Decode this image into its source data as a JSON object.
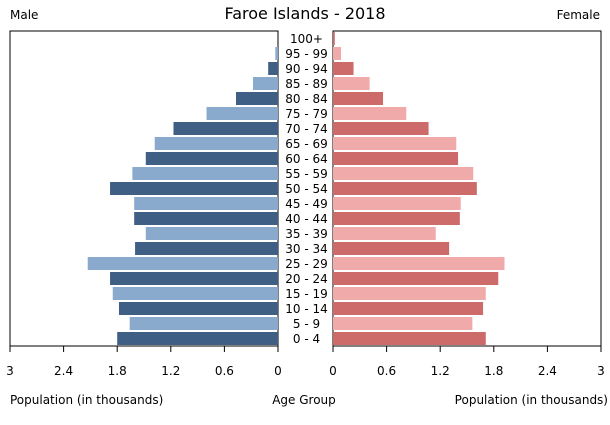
{
  "chart_data": {
    "type": "bar",
    "title": "Faroe Islands - 2018",
    "left_label": "Male",
    "right_label": "Female",
    "xlabel_left": "Population (in thousands)",
    "xlabel_center": "Age Group",
    "xlabel_right": "Population (in thousands)",
    "xlim": [
      0,
      3
    ],
    "ticks": [
      "0",
      "0.6",
      "1.2",
      "1.8",
      "2.4",
      "3"
    ],
    "tick_values": [
      0,
      0.6,
      1.2,
      1.8,
      2.4,
      3
    ],
    "grid": false,
    "colors": {
      "male_dark": "#3f5f85",
      "male_light": "#8aaacd",
      "female_dark": "#cd6a6a",
      "female_light": "#f0aaaa"
    },
    "categories": [
      "100+",
      "95 - 99",
      "90 - 94",
      "85 - 89",
      "80 - 84",
      "75 - 79",
      "70 - 74",
      "65 - 69",
      "60 - 64",
      "55 - 59",
      "50 - 54",
      "45 - 49",
      "40 - 44",
      "35 - 39",
      "30 - 34",
      "25 - 29",
      "20 - 24",
      "15 - 19",
      "10 - 14",
      "5 - 9",
      "0 - 4"
    ],
    "series": [
      {
        "name": "Male",
        "values": [
          0.0,
          0.03,
          0.11,
          0.28,
          0.47,
          0.8,
          1.17,
          1.38,
          1.48,
          1.63,
          1.88,
          1.61,
          1.61,
          1.48,
          1.6,
          2.13,
          1.88,
          1.85,
          1.78,
          1.66,
          1.8
        ]
      },
      {
        "name": "Female",
        "values": [
          0.02,
          0.09,
          0.23,
          0.41,
          0.56,
          0.82,
          1.07,
          1.38,
          1.4,
          1.57,
          1.61,
          1.43,
          1.42,
          1.15,
          1.3,
          1.92,
          1.85,
          1.71,
          1.68,
          1.56,
          1.71
        ]
      }
    ]
  }
}
